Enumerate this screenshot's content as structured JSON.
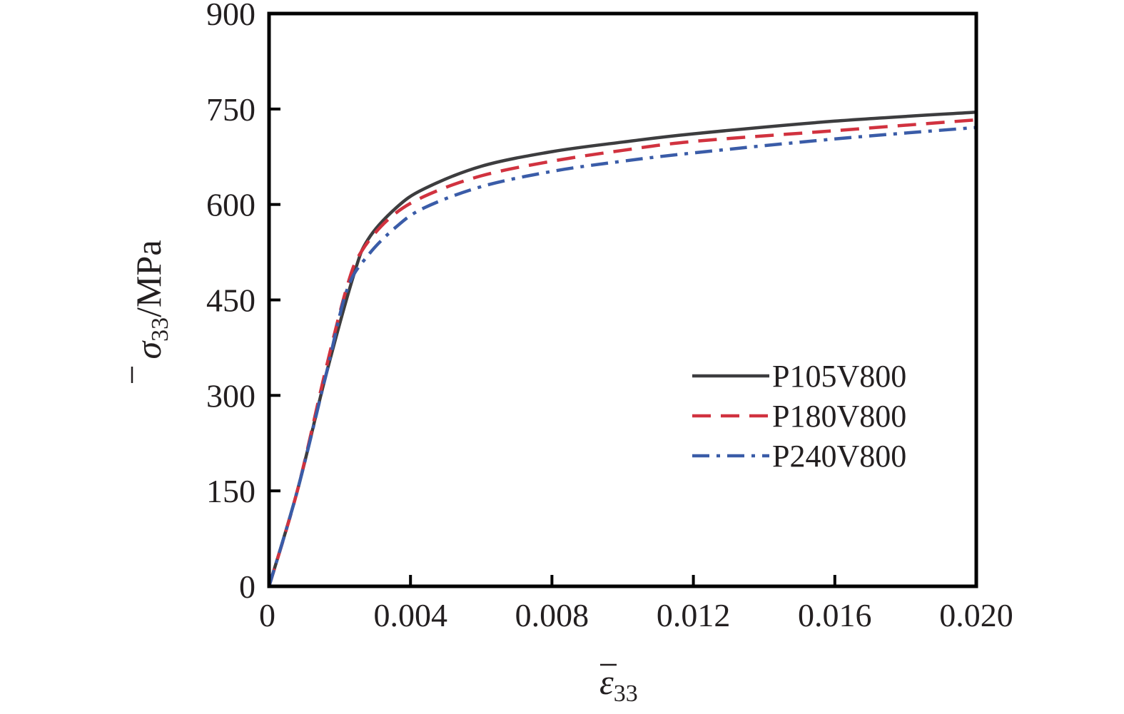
{
  "chart_data": {
    "type": "line",
    "title": "",
    "xlabel": {
      "symbol": "ε",
      "subscript": "33"
    },
    "ylabel": {
      "symbol": "σ",
      "subscript": "33",
      "unit": "/MPa"
    },
    "xlim": [
      0,
      0.02
    ],
    "ylim": [
      0,
      900
    ],
    "x_ticks": [
      0,
      0.004,
      0.008,
      0.012,
      0.016,
      0.02
    ],
    "x_tick_labels": [
      "0",
      "0.004",
      "0.008",
      "0.012",
      "0.016",
      "0.020"
    ],
    "y_ticks": [
      0,
      150,
      300,
      450,
      600,
      750,
      900
    ],
    "y_tick_labels": [
      "0",
      "150",
      "300",
      "450",
      "600",
      "750",
      "900"
    ],
    "grid": false,
    "legend_position": "center-right",
    "series": [
      {
        "name": "P105V800",
        "color": "#3d3d3f",
        "dash": "solid",
        "points": [
          [
            0,
            0
          ],
          [
            0.0008,
            150
          ],
          [
            0.0016,
            330
          ],
          [
            0.0024,
            490
          ],
          [
            0.0028,
            545
          ],
          [
            0.0036,
            595
          ],
          [
            0.0044,
            625
          ],
          [
            0.006,
            660
          ],
          [
            0.008,
            683
          ],
          [
            0.01,
            698
          ],
          [
            0.012,
            711
          ],
          [
            0.016,
            731
          ],
          [
            0.02,
            745
          ]
        ]
      },
      {
        "name": "P180V800",
        "color": "#d1323f",
        "dash": "dashed",
        "points": [
          [
            0,
            0
          ],
          [
            0.0008,
            150
          ],
          [
            0.0016,
            340
          ],
          [
            0.0022,
            470
          ],
          [
            0.0026,
            525
          ],
          [
            0.0034,
            578
          ],
          [
            0.0044,
            613
          ],
          [
            0.006,
            645
          ],
          [
            0.008,
            668
          ],
          [
            0.01,
            685
          ],
          [
            0.012,
            699
          ],
          [
            0.016,
            716
          ],
          [
            0.02,
            733
          ]
        ]
      },
      {
        "name": "P240V800",
        "color": "#3a5ca8",
        "dash": "dashdot",
        "points": [
          [
            0,
            0
          ],
          [
            0.0008,
            150
          ],
          [
            0.0016,
            330
          ],
          [
            0.0022,
            465
          ],
          [
            0.0028,
            520
          ],
          [
            0.0036,
            565
          ],
          [
            0.0044,
            595
          ],
          [
            0.006,
            628
          ],
          [
            0.008,
            652
          ],
          [
            0.01,
            668
          ],
          [
            0.012,
            681
          ],
          [
            0.016,
            703
          ],
          [
            0.02,
            721
          ]
        ]
      }
    ]
  }
}
